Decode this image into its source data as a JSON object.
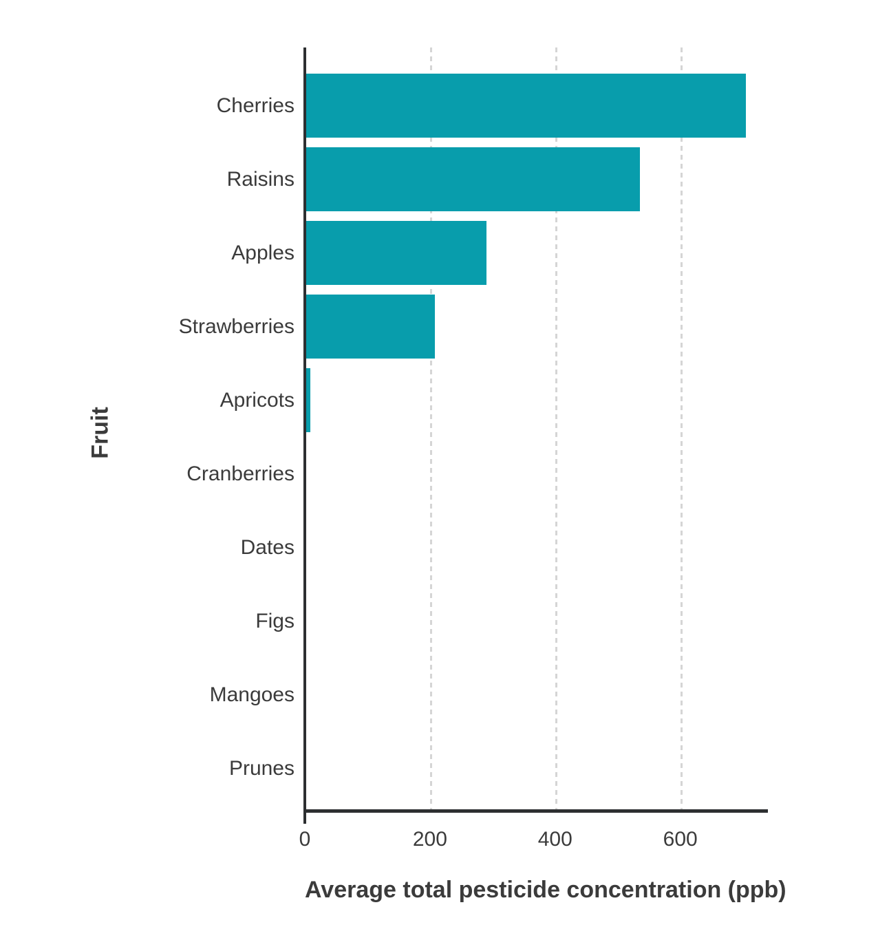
{
  "chart_data": {
    "type": "bar",
    "orientation": "horizontal",
    "title": "",
    "xlabel": "Average total pesticide concentration (ppb)",
    "ylabel": "Fruit",
    "categories": [
      "Cherries",
      "Raisins",
      "Apples",
      "Strawberries",
      "Apricots",
      "Cranberries",
      "Dates",
      "Figs",
      "Mangoes",
      "Prunes"
    ],
    "values": [
      705,
      536,
      290,
      208,
      9,
      0,
      0,
      0,
      0,
      0
    ],
    "xticks": [
      0,
      200,
      400,
      600
    ],
    "xtick_labels": [
      "0",
      "200",
      "400",
      "600"
    ],
    "xlim": [
      0,
      740
    ],
    "grid": "vertical dashed gridlines at x ticks, behind bars",
    "legend": "none",
    "bar_color": "#089DAC"
  },
  "colors": {
    "bar": "#089DAC",
    "axis_line": "#2d2f31",
    "gridline": "#d5d5d5",
    "text": "#3b3b3b",
    "background": "#ffffff"
  }
}
